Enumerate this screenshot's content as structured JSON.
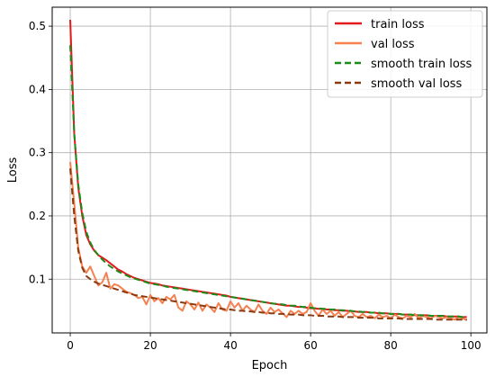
{
  "chart_data": {
    "type": "line",
    "xlabel": "Epoch",
    "ylabel": "Loss",
    "xlim": [
      -4.5,
      104
    ],
    "ylim": [
      0.015,
      0.53
    ],
    "xticks": [
      0,
      20,
      40,
      60,
      80,
      100
    ],
    "yticks": [
      0.1,
      0.2,
      0.3,
      0.4,
      0.5
    ],
    "grid": true,
    "legend_position": "top-right",
    "series": [
      {
        "name": "train loss",
        "color": "#e31a1c",
        "style": "solid",
        "values": [
          0.51,
          0.33,
          0.245,
          0.2,
          0.17,
          0.155,
          0.145,
          0.138,
          0.134,
          0.13,
          0.125,
          0.12,
          0.115,
          0.112,
          0.108,
          0.105,
          0.102,
          0.1,
          0.098,
          0.096,
          0.094,
          0.093,
          0.092,
          0.09,
          0.089,
          0.088,
          0.087,
          0.086,
          0.085,
          0.084,
          0.083,
          0.082,
          0.081,
          0.08,
          0.079,
          0.078,
          0.077,
          0.076,
          0.075,
          0.074,
          0.072,
          0.071,
          0.07,
          0.069,
          0.068,
          0.067,
          0.066,
          0.065,
          0.064,
          0.063,
          0.062,
          0.061,
          0.06,
          0.059,
          0.058,
          0.058,
          0.057,
          0.056,
          0.056,
          0.055,
          0.054,
          0.054,
          0.053,
          0.053,
          0.052,
          0.052,
          0.051,
          0.051,
          0.05,
          0.05,
          0.049,
          0.049,
          0.048,
          0.048,
          0.048,
          0.047,
          0.047,
          0.046,
          0.046,
          0.046,
          0.045,
          0.045,
          0.045,
          0.044,
          0.044,
          0.044,
          0.043,
          0.043,
          0.043,
          0.043,
          0.042,
          0.042,
          0.042,
          0.042,
          0.041,
          0.041,
          0.041,
          0.041,
          0.04,
          0.04
        ]
      },
      {
        "name": "val loss",
        "color": "#f4814f",
        "style": "solid",
        "values": [
          0.285,
          0.22,
          0.15,
          0.12,
          0.11,
          0.12,
          0.105,
          0.09,
          0.095,
          0.11,
          0.085,
          0.092,
          0.09,
          0.085,
          0.08,
          0.078,
          0.075,
          0.07,
          0.072,
          0.06,
          0.075,
          0.065,
          0.07,
          0.062,
          0.072,
          0.068,
          0.075,
          0.055,
          0.05,
          0.065,
          0.06,
          0.052,
          0.063,
          0.05,
          0.06,
          0.055,
          0.048,
          0.062,
          0.052,
          0.05,
          0.065,
          0.055,
          0.062,
          0.05,
          0.058,
          0.052,
          0.048,
          0.06,
          0.05,
          0.045,
          0.055,
          0.048,
          0.052,
          0.046,
          0.04,
          0.05,
          0.045,
          0.05,
          0.045,
          0.048,
          0.062,
          0.05,
          0.042,
          0.052,
          0.045,
          0.05,
          0.042,
          0.048,
          0.04,
          0.045,
          0.05,
          0.042,
          0.04,
          0.045,
          0.04,
          0.042,
          0.038,
          0.044,
          0.04,
          0.042,
          0.038,
          0.044,
          0.04,
          0.038,
          0.042,
          0.04,
          0.045,
          0.038,
          0.042,
          0.04,
          0.038,
          0.042,
          0.04,
          0.038,
          0.04,
          0.038,
          0.036,
          0.04,
          0.038,
          0.035
        ]
      },
      {
        "name": "smooth train loss",
        "color": "#1a8c1a",
        "style": "dashed",
        "values": [
          0.47,
          0.33,
          0.25,
          0.205,
          0.175,
          0.158,
          0.146,
          0.138,
          0.131,
          0.125,
          0.12,
          0.116,
          0.112,
          0.109,
          0.106,
          0.103,
          0.101,
          0.099,
          0.097,
          0.095,
          0.093,
          0.092,
          0.091,
          0.09,
          0.088,
          0.087,
          0.086,
          0.085,
          0.084,
          0.083,
          0.082,
          0.081,
          0.08,
          0.079,
          0.078,
          0.077,
          0.076,
          0.075,
          0.074,
          0.073,
          0.072,
          0.071,
          0.07,
          0.069,
          0.068,
          0.067,
          0.066,
          0.065,
          0.064,
          0.063,
          0.062,
          0.061,
          0.061,
          0.06,
          0.059,
          0.058,
          0.058,
          0.057,
          0.056,
          0.056,
          0.055,
          0.054,
          0.054,
          0.053,
          0.053,
          0.052,
          0.052,
          0.051,
          0.051,
          0.05,
          0.05,
          0.049,
          0.049,
          0.048,
          0.048,
          0.047,
          0.047,
          0.047,
          0.046,
          0.046,
          0.045,
          0.045,
          0.045,
          0.044,
          0.044,
          0.044,
          0.043,
          0.043,
          0.043,
          0.043,
          0.042,
          0.042,
          0.042,
          0.042,
          0.041,
          0.041,
          0.041,
          0.041,
          0.04,
          0.04
        ]
      },
      {
        "name": "smooth val loss",
        "color": "#8b3a0f",
        "style": "dashed",
        "values": [
          0.275,
          0.2,
          0.145,
          0.118,
          0.105,
          0.1,
          0.096,
          0.093,
          0.091,
          0.089,
          0.087,
          0.085,
          0.083,
          0.081,
          0.079,
          0.077,
          0.075,
          0.074,
          0.073,
          0.072,
          0.071,
          0.07,
          0.069,
          0.068,
          0.067,
          0.066,
          0.065,
          0.064,
          0.063,
          0.062,
          0.061,
          0.06,
          0.059,
          0.058,
          0.057,
          0.056,
          0.055,
          0.054,
          0.053,
          0.052,
          0.052,
          0.051,
          0.05,
          0.05,
          0.049,
          0.049,
          0.048,
          0.048,
          0.047,
          0.047,
          0.046,
          0.046,
          0.045,
          0.045,
          0.045,
          0.044,
          0.044,
          0.044,
          0.043,
          0.043,
          0.043,
          0.042,
          0.042,
          0.042,
          0.041,
          0.041,
          0.041,
          0.041,
          0.04,
          0.04,
          0.04,
          0.04,
          0.039,
          0.039,
          0.039,
          0.039,
          0.039,
          0.038,
          0.038,
          0.038,
          0.038,
          0.038,
          0.038,
          0.037,
          0.037,
          0.037,
          0.037,
          0.037,
          0.037,
          0.037,
          0.037,
          0.036,
          0.036,
          0.036,
          0.036,
          0.036,
          0.036,
          0.036,
          0.036,
          0.036
        ]
      }
    ]
  }
}
